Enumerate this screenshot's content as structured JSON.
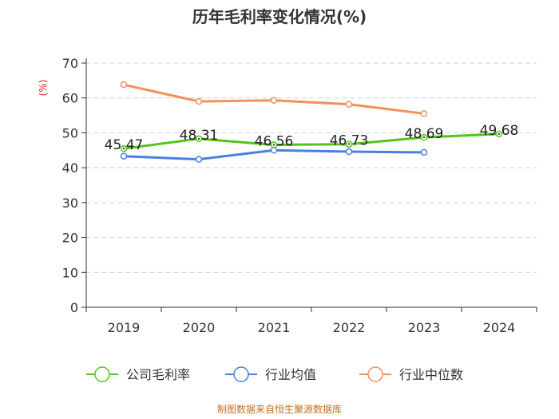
{
  "chart_data": {
    "type": "line",
    "title": "历年毛利率变化情况(%)",
    "ylabel": "(%)",
    "categories": [
      "2019",
      "2020",
      "2021",
      "2022",
      "2023",
      "2024"
    ],
    "ylim": [
      0,
      70
    ],
    "yticks": [
      0,
      10,
      20,
      30,
      40,
      50,
      60,
      70
    ],
    "grid": true,
    "series": [
      {
        "name": "公司毛利率",
        "color": "#52c41a",
        "values": [
          45.47,
          48.31,
          46.56,
          46.73,
          48.69,
          49.68
        ],
        "labels": [
          "45.47",
          "48.31",
          "46.56",
          "46.73",
          "48.69",
          "49.68"
        ]
      },
      {
        "name": "行业均值",
        "color": "#4a7fe0",
        "values": [
          43.3,
          42.4,
          45.0,
          44.6,
          44.4,
          null
        ]
      },
      {
        "name": "行业中位数",
        "color": "#f5905a",
        "values": [
          63.8,
          59.0,
          59.3,
          58.2,
          55.5,
          null
        ]
      }
    ],
    "source": "制图数据来自恒生聚源数据库"
  }
}
